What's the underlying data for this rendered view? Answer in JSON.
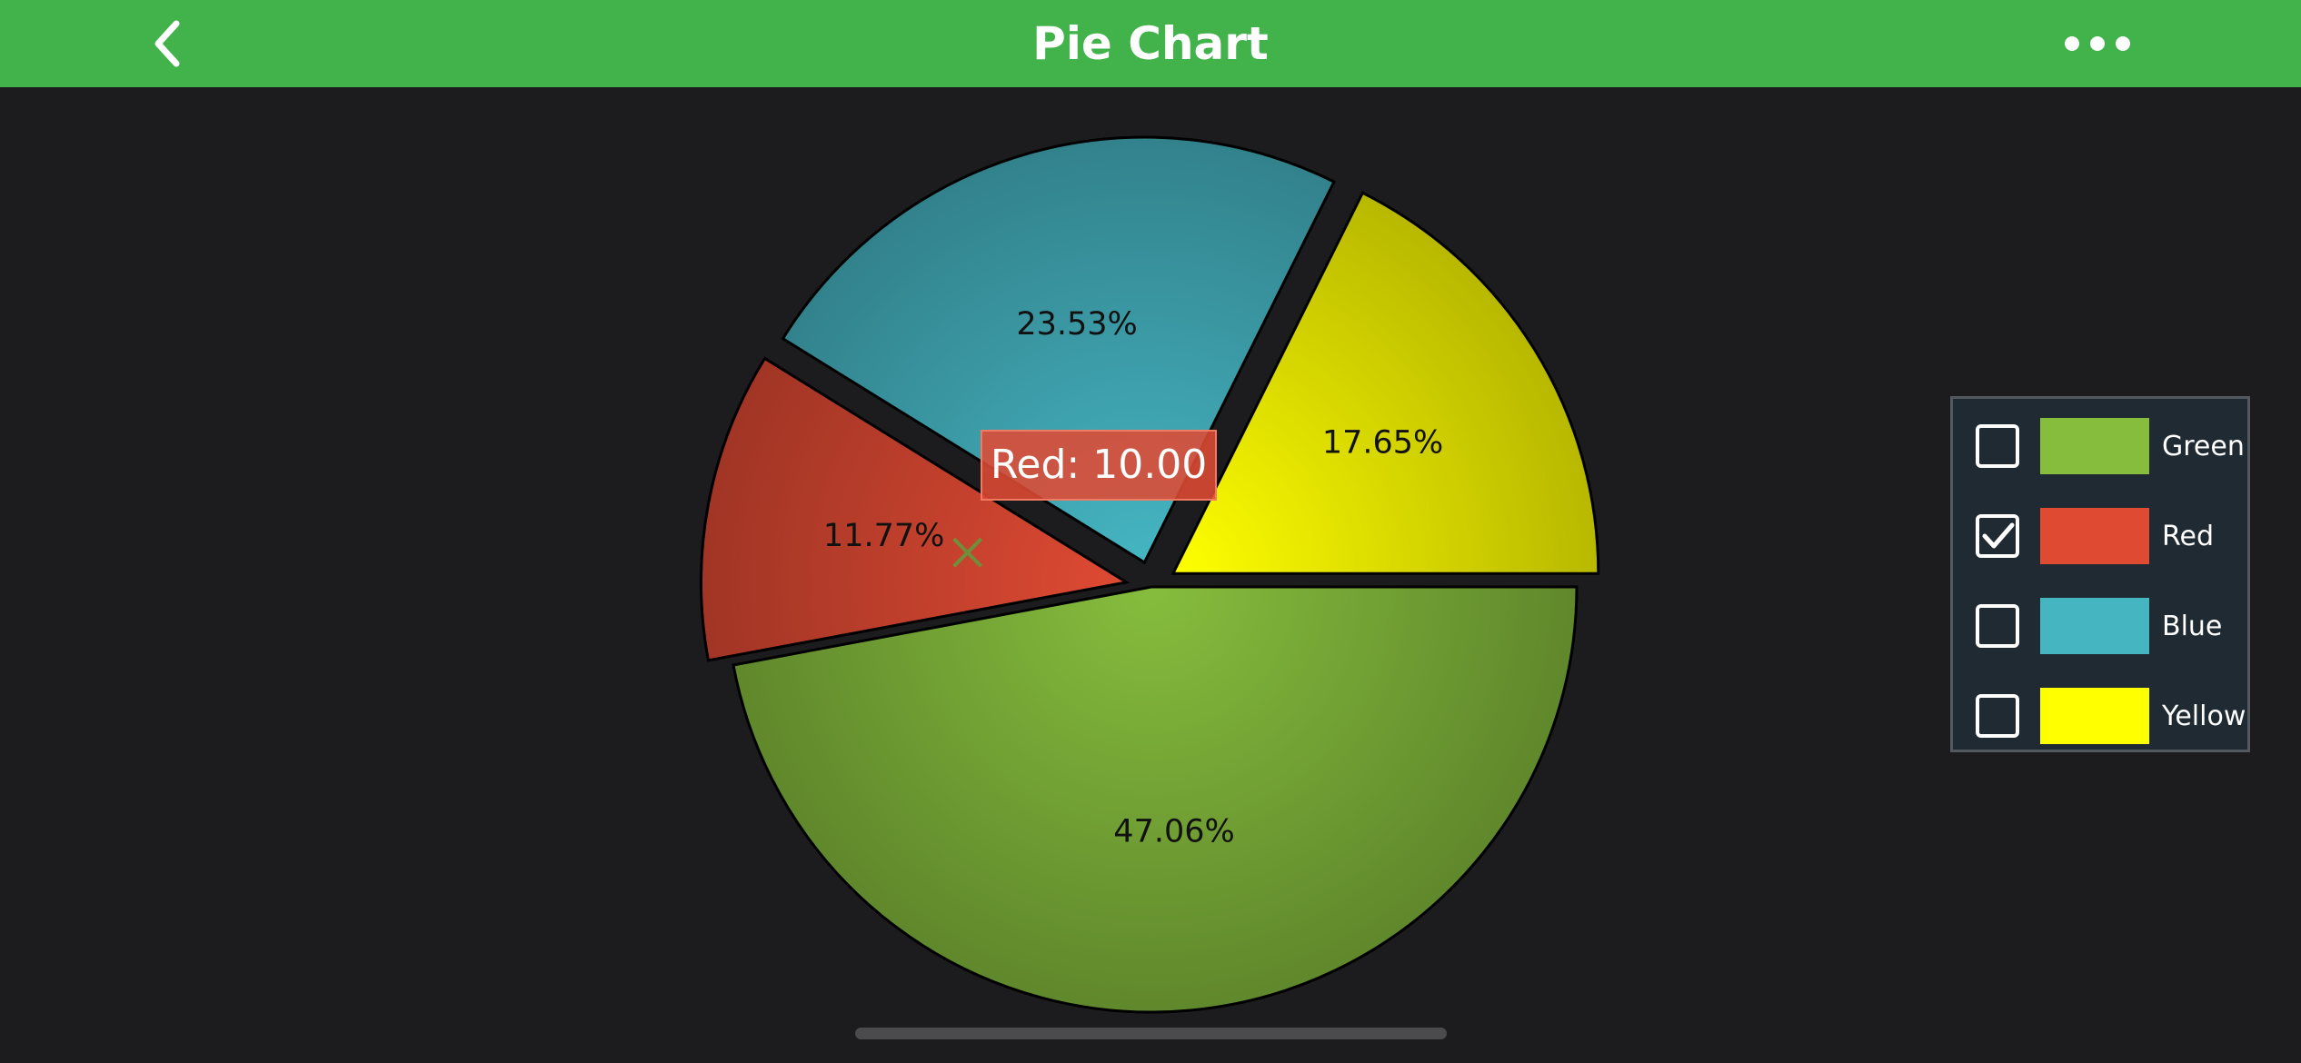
{
  "header": {
    "title": "Pie Chart",
    "back_icon": "chevron-left-icon",
    "more_icon": "ellipsis-horizontal-icon",
    "bar_color": "#41b34a"
  },
  "chart_data": {
    "type": "pie",
    "title": "",
    "slices": [
      {
        "name": "Green",
        "value": 40,
        "percent_label": "47.06%",
        "color": "#86bd3d",
        "exploded": false
      },
      {
        "name": "Red",
        "value": 10,
        "percent_label": "11.77%",
        "color": "#df4a33",
        "exploded": true
      },
      {
        "name": "Blue",
        "value": 20,
        "percent_label": "23.53%",
        "color": "#45b5c2",
        "exploded": true
      },
      {
        "name": "Yellow",
        "value": 15,
        "percent_label": "17.65%",
        "color": "#ffff00",
        "exploded": true
      }
    ],
    "tooltip": {
      "text": "Red: 10.00",
      "series": "Red"
    },
    "legend": {
      "position": "right"
    }
  },
  "legend": {
    "items": [
      {
        "label": "Green",
        "checked": false,
        "color": "#86bd3d"
      },
      {
        "label": "Red",
        "checked": true,
        "color": "#df4a33"
      },
      {
        "label": "Blue",
        "checked": false,
        "color": "#45b5c2"
      },
      {
        "label": "Yellow",
        "checked": false,
        "color": "#ffff00"
      }
    ]
  }
}
